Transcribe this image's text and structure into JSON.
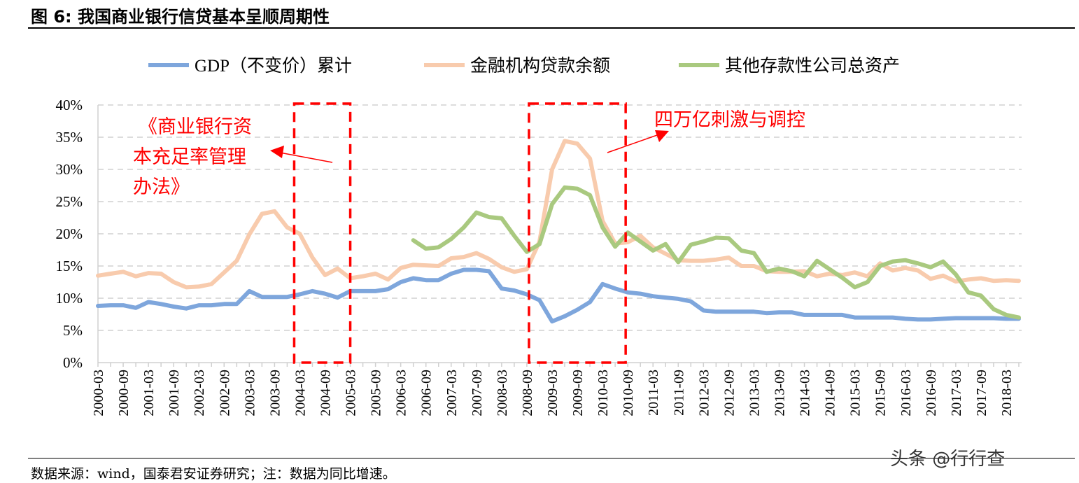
{
  "figure": {
    "title": "图 6:  我国商业银行信贷基本呈顺周期性",
    "source": "数据来源：wind，国泰君安证券研究；注：数据为同比增速。",
    "watermark": "头条 @行行查"
  },
  "chart_data": {
    "type": "line",
    "title": "",
    "xlabel": "",
    "ylabel": "",
    "ylim": [
      0,
      40
    ],
    "yticks": [
      "0%",
      "5%",
      "10%",
      "15%",
      "20%",
      "25%",
      "30%",
      "35%",
      "40%"
    ],
    "grid": true,
    "legend": "top",
    "categories": [
      "2000-03",
      "2000-06",
      "2000-09",
      "2000-12",
      "2001-03",
      "2001-06",
      "2001-09",
      "2001-12",
      "2002-03",
      "2002-06",
      "2002-09",
      "2002-12",
      "2003-03",
      "2003-06",
      "2003-09",
      "2003-12",
      "2004-03",
      "2004-06",
      "2004-09",
      "2004-12",
      "2005-03",
      "2005-06",
      "2005-09",
      "2005-12",
      "2006-03",
      "2006-06",
      "2006-09",
      "2006-12",
      "2007-03",
      "2007-06",
      "2007-09",
      "2007-12",
      "2008-03",
      "2008-06",
      "2008-09",
      "2008-12",
      "2009-03",
      "2009-06",
      "2009-09",
      "2009-12",
      "2010-03",
      "2010-06",
      "2010-09",
      "2010-12",
      "2011-03",
      "2011-06",
      "2011-09",
      "2011-12",
      "2012-03",
      "2012-06",
      "2012-09",
      "2012-12",
      "2013-03",
      "2013-06",
      "2013-09",
      "2013-12",
      "2014-03",
      "2014-06",
      "2014-09",
      "2014-12",
      "2015-03",
      "2015-06",
      "2015-09",
      "2015-12",
      "2016-03",
      "2016-06",
      "2016-09",
      "2016-12",
      "2017-03",
      "2017-06",
      "2017-09",
      "2017-12",
      "2018-03",
      "2018-06"
    ],
    "series": [
      {
        "name": "GDP（不变价）累计",
        "color": "#7ea6dc",
        "values": [
          8.8,
          8.9,
          8.9,
          8.5,
          9.4,
          9.1,
          8.7,
          8.4,
          8.9,
          8.9,
          9.1,
          9.1,
          11.1,
          10.2,
          10.2,
          10.2,
          10.6,
          11.1,
          10.7,
          10.1,
          11.1,
          11.1,
          11.1,
          11.4,
          12.5,
          13.1,
          12.8,
          12.8,
          13.8,
          14.4,
          14.4,
          14.2,
          11.5,
          11.2,
          10.6,
          9.7,
          6.4,
          7.2,
          8.2,
          9.4,
          12.2,
          11.5,
          10.9,
          10.7,
          10.3,
          10.1,
          9.9,
          9.5,
          8.1,
          7.9,
          7.9,
          7.9,
          7.9,
          7.7,
          7.8,
          7.8,
          7.4,
          7.4,
          7.4,
          7.4,
          7.0,
          7.0,
          7.0,
          7.0,
          6.8,
          6.7,
          6.7,
          6.8,
          6.9,
          6.9,
          6.9,
          6.9,
          6.8,
          6.8
        ]
      },
      {
        "name": "金融机构贷款余额",
        "color": "#f8cbad",
        "values": [
          13.5,
          13.8,
          14.1,
          13.4,
          13.9,
          13.8,
          12.5,
          11.7,
          11.8,
          12.2,
          14.0,
          15.8,
          19.9,
          23.1,
          23.5,
          21.0,
          20.0,
          16.3,
          13.6,
          14.6,
          13.1,
          13.4,
          13.8,
          12.9,
          14.7,
          15.2,
          15.1,
          15.0,
          16.2,
          16.4,
          17.0,
          16.1,
          14.8,
          14.1,
          14.5,
          18.8,
          30.0,
          34.4,
          34.0,
          31.7,
          22.0,
          18.5,
          18.7,
          19.7,
          17.9,
          16.9,
          15.9,
          15.8,
          15.8,
          16.0,
          16.3,
          15.0,
          15.0,
          14.2,
          14.1,
          14.1,
          14.2,
          13.4,
          13.8,
          13.6,
          14.0,
          13.4,
          15.4,
          14.3,
          14.7,
          14.3,
          13.0,
          13.5,
          12.6,
          12.9,
          13.1,
          12.7,
          12.8,
          12.7
        ]
      },
      {
        "name": "其他存款性公司总资产",
        "color": "#a9c97f",
        "values": [
          null,
          null,
          null,
          null,
          null,
          null,
          null,
          null,
          null,
          null,
          null,
          null,
          null,
          null,
          null,
          null,
          null,
          null,
          null,
          null,
          null,
          null,
          null,
          null,
          null,
          19.0,
          17.7,
          17.9,
          19.2,
          21.0,
          23.3,
          22.6,
          22.4,
          19.7,
          17.2,
          18.4,
          24.6,
          27.2,
          27.0,
          26.0,
          21.0,
          18.0,
          20.2,
          18.8,
          17.4,
          18.4,
          15.6,
          18.3,
          18.8,
          19.4,
          19.3,
          17.4,
          17.0,
          14.1,
          14.6,
          14.2,
          13.4,
          15.8,
          14.5,
          13.2,
          11.7,
          12.5,
          15.0,
          15.7,
          15.9,
          15.4,
          14.8,
          15.7,
          13.7,
          10.9,
          10.4,
          8.3,
          7.4,
          7.0
        ]
      }
    ],
    "annotations": [
      {
        "text": "《商业银行资本充足率管理办法》",
        "lines": [
          "《商业银行资",
          "本充足率管理",
          "办法》"
        ],
        "highlight": [
          "2004-03",
          "2005-03"
        ],
        "color": "#ff0000"
      },
      {
        "text": "四万亿刺激与调控",
        "highlight": [
          "2008-12",
          "2010-09"
        ],
        "color": "#ff0000"
      }
    ]
  }
}
